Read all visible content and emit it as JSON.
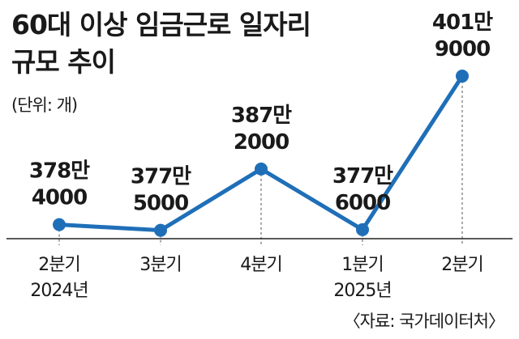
{
  "title": [
    "60대 이상 임금근로 일자리",
    "규모 추이"
  ],
  "unit": "(단위: 개)",
  "source": "〈자료: 국가데이터처〉",
  "colors": {
    "line": "#1f6fb8",
    "axis": "#222222",
    "guide": "#555555"
  },
  "chart_data": {
    "type": "line",
    "categories": [
      "2분기 2024년",
      "3분기",
      "4분기",
      "1분기 2025년",
      "2분기"
    ],
    "tick_labels": [
      [
        "2분기",
        "2024년"
      ],
      [
        "3분기"
      ],
      [
        "4분기"
      ],
      [
        "1분기",
        "2025년"
      ],
      [
        "2분기"
      ]
    ],
    "values": [
      3784000,
      3775000,
      3872000,
      3776000,
      4019000
    ],
    "data_labels": [
      [
        "378만",
        "4000"
      ],
      [
        "377만",
        "5000"
      ],
      [
        "387만",
        "2000"
      ],
      [
        "377만",
        "6000"
      ],
      [
        "401만",
        "9000"
      ]
    ],
    "ylim": [
      3740000,
      4060000
    ],
    "grid": false,
    "legend": "none"
  }
}
